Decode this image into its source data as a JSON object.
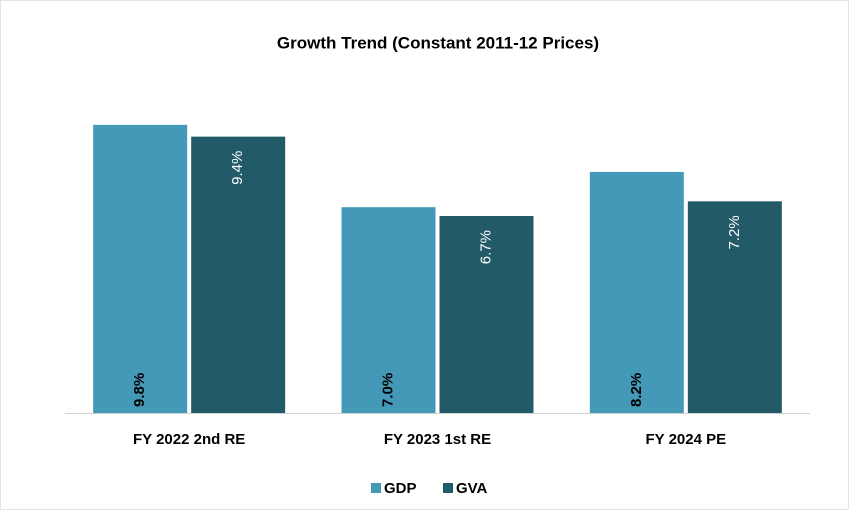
{
  "chart_data": {
    "type": "bar",
    "title": "Growth Trend (Constant 2011-12 Prices)",
    "categories": [
      "FY 2022 2nd RE",
      "FY 2023 1st RE",
      "FY 2024 PE"
    ],
    "series": [
      {
        "name": "GDP",
        "color": "#4599b8",
        "values": [
          9.8,
          7.0,
          8.2
        ],
        "value_labels": [
          "9.8%",
          "7.0%",
          "8.2%"
        ]
      },
      {
        "name": "GVA",
        "color": "#235a68",
        "values": [
          9.4,
          6.7,
          7.2
        ],
        "value_labels": [
          "9.4%",
          "6.7%",
          "7.2%"
        ]
      }
    ],
    "ylim": [
      0,
      10
    ],
    "legend": "bottom"
  }
}
